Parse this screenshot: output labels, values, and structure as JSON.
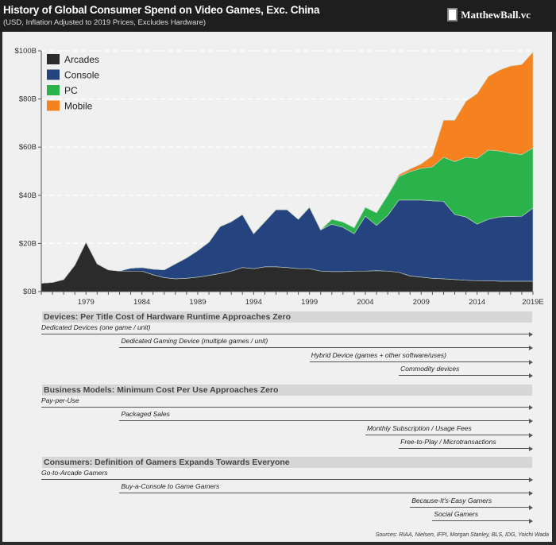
{
  "header": {
    "title": "History of Global Consumer Spend on Video Games, Exc. China",
    "subtitle": "(USD, Inflation Adjusted to 2019 Prices, Excludes Hardware)",
    "brand": "MatthewBall.vc"
  },
  "chart_data": {
    "type": "area",
    "stacked": true,
    "title": "History of Global Consumer Spend on Video Games, Exc. China",
    "subtitle": "(USD, Inflation Adjusted to 2019 Prices, Excludes Hardware)",
    "x": [
      1975,
      1976,
      1977,
      1978,
      1979,
      1980,
      1981,
      1982,
      1983,
      1984,
      1985,
      1986,
      1987,
      1988,
      1989,
      1990,
      1991,
      1992,
      1993,
      1994,
      1995,
      1996,
      1997,
      1998,
      1999,
      2000,
      2001,
      2002,
      2003,
      2004,
      2005,
      2006,
      2007,
      2008,
      2009,
      2010,
      2011,
      2012,
      2013,
      2014,
      2015,
      2016,
      2017,
      2018,
      2019
    ],
    "x_tick_labels": [
      "1979",
      "1984",
      "1989",
      "1994",
      "1999",
      "2004",
      "2009",
      "2014",
      "2019E"
    ],
    "x_tick_years": [
      1979,
      1984,
      1989,
      1994,
      1999,
      2004,
      2009,
      2014,
      2019
    ],
    "y_tick_labels": [
      "$0B",
      "$20B",
      "$40B",
      "$60B",
      "$80B",
      "$100B"
    ],
    "y_ticks": [
      0,
      20,
      40,
      60,
      80,
      100
    ],
    "ylim": [
      0,
      100
    ],
    "xlim": [
      1975,
      2019
    ],
    "y_unit": "USD billions",
    "grid": "horizontal dashed",
    "legend_position": "top-left",
    "series": [
      {
        "name": "Arcades",
        "color": "#2b2b2b",
        "values": [
          3.5,
          3.8,
          5,
          11,
          20.5,
          11.5,
          9,
          8.5,
          8.5,
          8.5,
          7,
          5.8,
          5.3,
          5.5,
          6,
          6.7,
          7.5,
          8.5,
          10,
          9.5,
          10.3,
          10.3,
          10,
          9.5,
          9.5,
          8.5,
          8.3,
          8.3,
          8.5,
          8.5,
          8.7,
          8.5,
          8,
          6.5,
          6,
          5.5,
          5.3,
          5,
          4.7,
          4.5,
          4.5,
          4.3,
          4.3,
          4.3,
          4.3
        ]
      },
      {
        "name": "Console",
        "color": "#24437f",
        "values": [
          0,
          0,
          0,
          0,
          0,
          0,
          0,
          0,
          1.2,
          1.5,
          2.3,
          3.2,
          6.2,
          8.5,
          11,
          13.8,
          19.5,
          20.5,
          22,
          14.5,
          18.7,
          23.7,
          24,
          20.5,
          25.5,
          17.1,
          19.7,
          18.4,
          15.5,
          22.8,
          18.8,
          23.1,
          30,
          31.5,
          32,
          32.2,
          32.2,
          27,
          26.3,
          23.5,
          25.5,
          26.7,
          26.9,
          27,
          30.4
        ]
      },
      {
        "name": "PC",
        "color": "#2ab34a",
        "values": [
          0,
          0,
          0,
          0,
          0,
          0,
          0,
          0,
          0,
          0,
          0,
          0,
          0,
          0,
          0,
          0,
          0,
          0,
          0,
          0,
          0,
          0,
          0,
          0,
          0,
          0,
          2,
          2.2,
          2.5,
          3.7,
          5.2,
          8.4,
          9.8,
          11.8,
          13.2,
          14.1,
          18.3,
          22,
          24.8,
          27.3,
          28.8,
          27.4,
          26.3,
          25.6,
          25
        ]
      },
      {
        "name": "Mobile",
        "color": "#f5821f",
        "values": [
          0,
          0,
          0,
          0,
          0,
          0,
          0,
          0,
          0,
          0,
          0,
          0,
          0,
          0,
          0,
          0,
          0,
          0,
          0,
          0,
          0,
          0,
          0,
          0,
          0,
          0,
          0,
          0,
          0,
          0,
          0,
          0,
          0.7,
          1.1,
          1.8,
          4.6,
          15.4,
          17.2,
          23.2,
          26.9,
          30.5,
          33.6,
          36.2,
          37.4,
          39.8
        ]
      }
    ]
  },
  "timeline": {
    "sections": [
      {
        "title": "Devices: Per Title Cost of Hardware Runtime Approaches Zero",
        "rows": [
          {
            "label": "Dedicated Devices (one game / unit)",
            "start_year": 1975
          },
          {
            "label": "Dedicated Gaming Device (multiple games / unit)",
            "start_year": 1982
          },
          {
            "label": "Hybrid Device (games + other software/uses)",
            "start_year": 1999
          },
          {
            "label": "Commodity devices",
            "start_year": 2007
          }
        ]
      },
      {
        "title": "Business Models: Minimum Cost Per Use Approaches Zero",
        "rows": [
          {
            "label": "Pay-per-Use",
            "start_year": 1975
          },
          {
            "label": "Packaged Sales",
            "start_year": 1982
          },
          {
            "label": "Monthly Subscription / Usage Fees",
            "start_year": 2004
          },
          {
            "label": "Free-to-Play / Microtransactions",
            "start_year": 2007
          }
        ]
      },
      {
        "title": "Consumers: Definition of Gamers Expands  Towards Everyone",
        "rows": [
          {
            "label": "Go-to-Arcade Gamers",
            "start_year": 1975
          },
          {
            "label": "Buy-a-Console to Game Gamers",
            "start_year": 1982
          },
          {
            "label": "Because-It's-Easy Gamers",
            "start_year": 2008
          },
          {
            "label": "Social Gamers",
            "start_year": 2010
          }
        ]
      }
    ],
    "sources": "Sources: RIAA, Nielsen, IFPI, Morgan Stanley, BLS, IDG, Yoichi Wada"
  }
}
